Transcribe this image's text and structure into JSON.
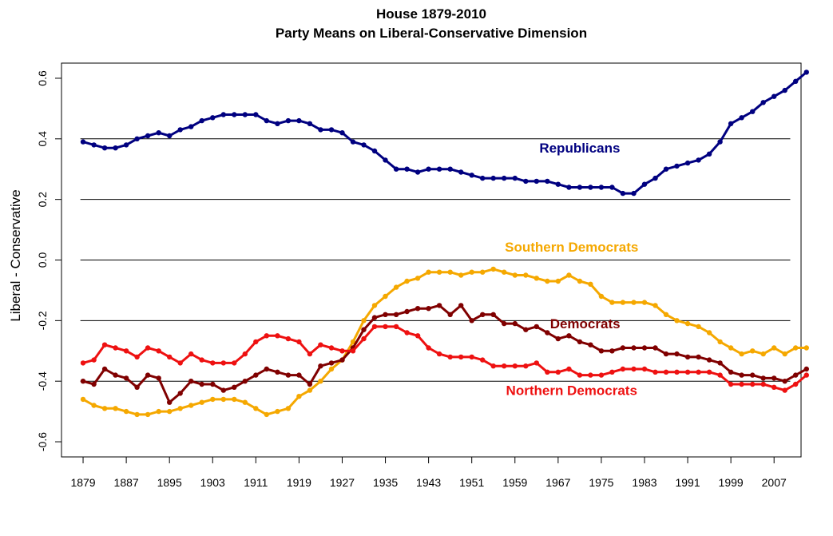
{
  "chart_data": {
    "type": "line",
    "title": "House 1879-2010",
    "subtitle": "Party Means on Liberal-Conservative Dimension",
    "xlabel": "",
    "ylabel": "Liberal - Conservative",
    "xlim": [
      1875,
      2012
    ],
    "ylim": [
      -0.65,
      0.65
    ],
    "x_ticks": [
      1879,
      1887,
      1895,
      1903,
      1911,
      1919,
      1927,
      1935,
      1943,
      1951,
      1959,
      1967,
      1975,
      1983,
      1991,
      1999,
      2007
    ],
    "y_ticks": [
      -0.6,
      -0.4,
      -0.2,
      0.0,
      0.2,
      0.4,
      0.6
    ],
    "y_tick_labels": [
      "-0.6",
      "-0.4",
      "-0.2",
      "0.0",
      "0.2",
      "0.4",
      "0.6"
    ],
    "hlines": [
      0.4,
      0.2,
      0.0,
      -0.2,
      -0.4
    ],
    "x_start": 1879,
    "x_step": 2,
    "series": [
      {
        "name": "Republicans",
        "color": "#000080",
        "values": [
          0.39,
          0.38,
          0.37,
          0.37,
          0.38,
          0.4,
          0.41,
          0.42,
          0.41,
          0.43,
          0.44,
          0.46,
          0.47,
          0.48,
          0.48,
          0.48,
          0.48,
          0.46,
          0.45,
          0.46,
          0.46,
          0.45,
          0.43,
          0.43,
          0.42,
          0.39,
          0.38,
          0.36,
          0.33,
          0.3,
          0.3,
          0.29,
          0.3,
          0.3,
          0.3,
          0.29,
          0.28,
          0.27,
          0.27,
          0.27,
          0.27,
          0.26,
          0.26,
          0.26,
          0.25,
          0.24,
          0.24,
          0.24,
          0.24,
          0.24,
          0.22,
          0.22,
          0.25,
          0.27,
          0.3,
          0.31,
          0.32,
          0.33,
          0.35,
          0.39,
          0.45,
          0.47,
          0.49,
          0.52,
          0.54,
          0.56,
          0.59,
          0.62
        ]
      },
      {
        "name": "Southern Democrats",
        "color": "#F5A800",
        "values": [
          -0.46,
          -0.48,
          -0.49,
          -0.49,
          -0.5,
          -0.51,
          -0.51,
          -0.5,
          -0.5,
          -0.49,
          -0.48,
          -0.47,
          -0.46,
          -0.46,
          -0.46,
          -0.47,
          -0.49,
          -0.51,
          -0.5,
          -0.49,
          -0.45,
          -0.43,
          -0.4,
          -0.36,
          -0.33,
          -0.27,
          -0.2,
          -0.15,
          -0.12,
          -0.09,
          -0.07,
          -0.06,
          -0.04,
          -0.04,
          -0.04,
          -0.05,
          -0.04,
          -0.04,
          -0.03,
          -0.04,
          -0.05,
          -0.05,
          -0.06,
          -0.07,
          -0.07,
          -0.05,
          -0.07,
          -0.08,
          -0.12,
          -0.14,
          -0.14,
          -0.14,
          -0.14,
          -0.15,
          -0.18,
          -0.2,
          -0.21,
          -0.22,
          -0.24,
          -0.27,
          -0.29,
          -0.31,
          -0.3,
          -0.31,
          -0.29,
          -0.31,
          -0.29,
          -0.29
        ]
      },
      {
        "name": "Democrats",
        "color": "#800000",
        "values": [
          -0.4,
          -0.41,
          -0.36,
          -0.38,
          -0.39,
          -0.42,
          -0.38,
          -0.39,
          -0.47,
          -0.44,
          -0.4,
          -0.41,
          -0.41,
          -0.43,
          -0.42,
          -0.4,
          -0.38,
          -0.36,
          -0.37,
          -0.38,
          -0.38,
          -0.41,
          -0.35,
          -0.34,
          -0.33,
          -0.29,
          -0.23,
          -0.19,
          -0.18,
          -0.18,
          -0.17,
          -0.16,
          -0.16,
          -0.15,
          -0.18,
          -0.15,
          -0.2,
          -0.18,
          -0.18,
          -0.21,
          -0.21,
          -0.23,
          -0.22,
          -0.24,
          -0.26,
          -0.25,
          -0.27,
          -0.28,
          -0.3,
          -0.3,
          -0.29,
          -0.29,
          -0.29,
          -0.29,
          -0.31,
          -0.31,
          -0.32,
          -0.32,
          -0.33,
          -0.34,
          -0.37,
          -0.38,
          -0.38,
          -0.39,
          -0.39,
          -0.4,
          -0.38,
          -0.36
        ]
      },
      {
        "name": "Northern Democrats",
        "color": "#EE1111",
        "values": [
          -0.34,
          -0.33,
          -0.28,
          -0.29,
          -0.3,
          -0.32,
          -0.29,
          -0.3,
          -0.32,
          -0.34,
          -0.31,
          -0.33,
          -0.34,
          -0.34,
          -0.34,
          -0.31,
          -0.27,
          -0.25,
          -0.25,
          -0.26,
          -0.27,
          -0.31,
          -0.28,
          -0.29,
          -0.3,
          -0.3,
          -0.26,
          -0.22,
          -0.22,
          -0.22,
          -0.24,
          -0.25,
          -0.29,
          -0.31,
          -0.32,
          -0.32,
          -0.32,
          -0.33,
          -0.35,
          -0.35,
          -0.35,
          -0.35,
          -0.34,
          -0.37,
          -0.37,
          -0.36,
          -0.38,
          -0.38,
          -0.38,
          -0.37,
          -0.36,
          -0.36,
          -0.36,
          -0.37,
          -0.37,
          -0.37,
          -0.37,
          -0.37,
          -0.37,
          -0.38,
          -0.41,
          -0.41,
          -0.41,
          -0.41,
          -0.42,
          -0.43,
          -0.41,
          -0.38
        ]
      }
    ],
    "annotations": [
      {
        "text": "Republicans",
        "x": 1971,
        "y": 0.355,
        "color": "#000080"
      },
      {
        "text": "Southern Democrats",
        "x": 1969.5,
        "y": 0.028,
        "color": "#F5A800"
      },
      {
        "text": "Democrats",
        "x": 1972,
        "y": -0.225,
        "color": "#800000"
      },
      {
        "text": "Northern Democrats",
        "x": 1969.5,
        "y": -0.445,
        "color": "#EE1111"
      }
    ]
  }
}
